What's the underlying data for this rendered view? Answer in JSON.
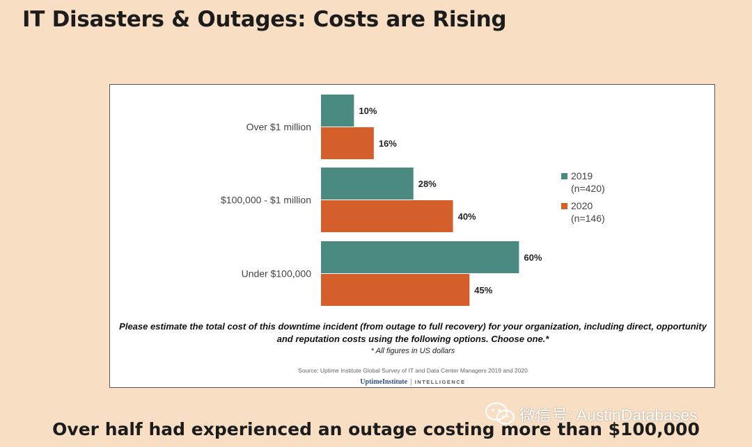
{
  "slide": {
    "title": "IT Disasters & Outages: Costs are Rising",
    "caption": "Over half had experienced an outage costing more than $100,000"
  },
  "chart_data": {
    "type": "bar",
    "orientation": "horizontal",
    "categories": [
      "Over $1 million",
      "$100,000 - $1 million",
      "Under $100,000"
    ],
    "series": [
      {
        "name": "2019",
        "sample": "(n=420)",
        "color": "#4a8a80",
        "values": [
          10,
          28,
          60
        ]
      },
      {
        "name": "2020",
        "sample": "(n=146)",
        "color": "#d45f2b",
        "values": [
          16,
          40,
          45
        ]
      }
    ],
    "value_suffix": "%",
    "xlim": [
      0,
      65
    ],
    "legend_position": "right",
    "question": "Please estimate the total cost of this downtime incident (from outage to full recovery) for your organization, including direct, opportunity and reputation costs using the following options. Choose one.*",
    "note": "* All figures in US dollars",
    "source": "Source: Uptime Institute Global Survey of IT and Data Center Managers 2019 and 2020",
    "brand_name": "UptimeInstitute",
    "brand_sub": "INTELLIGENCE"
  },
  "watermark": {
    "text": "微信号: AustinDatabases",
    "icon": "wechat-icon"
  }
}
